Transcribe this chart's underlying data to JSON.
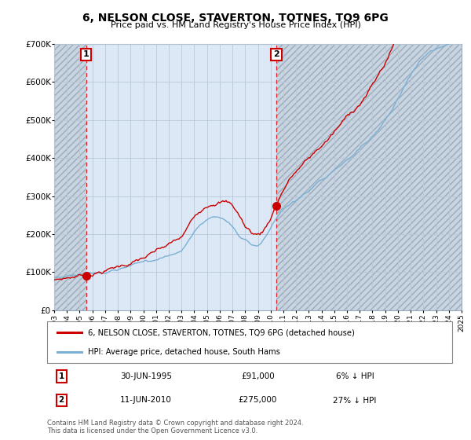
{
  "title": "6, NELSON CLOSE, STAVERTON, TOTNES, TQ9 6PG",
  "subtitle": "Price paid vs. HM Land Registry's House Price Index (HPI)",
  "legend_label_red": "6, NELSON CLOSE, STAVERTON, TOTNES, TQ9 6PG (detached house)",
  "legend_label_blue": "HPI: Average price, detached house, South Hams",
  "transaction1_date": "30-JUN-1995",
  "transaction1_price": "£91,000",
  "transaction1_hpi": "6% ↓ HPI",
  "transaction1_year": 1995.5,
  "transaction1_value": 91000,
  "transaction2_date": "11-JUN-2010",
  "transaction2_price": "£275,000",
  "transaction2_hpi": "27% ↓ HPI",
  "transaction2_year": 2010.45,
  "transaction2_value": 275000,
  "footer": "Contains HM Land Registry data © Crown copyright and database right 2024.\nThis data is licensed under the Open Government Licence v3.0.",
  "ylim": [
    0,
    700000
  ],
  "xlim_start": 1993,
  "xlim_end": 2025,
  "yticks": [
    0,
    100000,
    200000,
    300000,
    400000,
    500000,
    600000,
    700000
  ],
  "ytick_labels": [
    "£0",
    "£100K",
    "£200K",
    "£300K",
    "£400K",
    "£500K",
    "£600K",
    "£700K"
  ],
  "xtick_years": [
    1993,
    1994,
    1995,
    1996,
    1997,
    1998,
    1999,
    2000,
    2001,
    2002,
    2003,
    2004,
    2005,
    2006,
    2007,
    2008,
    2009,
    2010,
    2011,
    2012,
    2013,
    2014,
    2015,
    2016,
    2017,
    2018,
    2019,
    2020,
    2021,
    2022,
    2023,
    2024,
    2025
  ],
  "red_color": "#cc0000",
  "blue_color": "#7ab0d4",
  "bg_plot": "#dce8f5",
  "bg_white": "#ffffff",
  "hatch_color": "#b0b8c8",
  "grid_color": "#b8c8d8",
  "title_fontsize": 10,
  "subtitle_fontsize": 8
}
